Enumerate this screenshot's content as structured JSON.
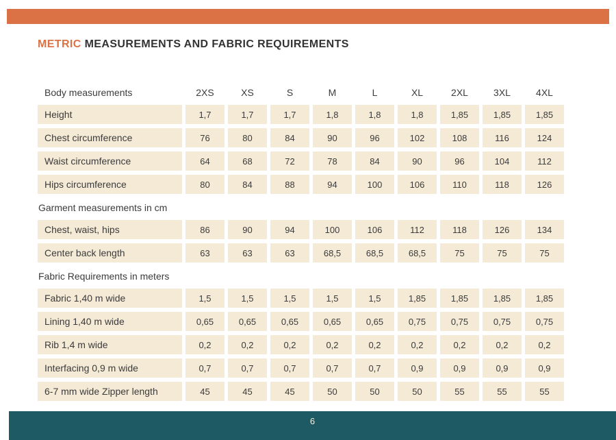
{
  "page": {
    "title_accent": "METRIC",
    "title_rest": " MEASUREMENTS AND FABRIC REQUIREMENTS",
    "page_number": "6",
    "colors": {
      "accent_orange": "#DB7245",
      "row_beige": "#F5EAD6",
      "footer_teal": "#1D5A64",
      "text_dark": "#3B3B3B"
    }
  },
  "table": {
    "header_label": "Body measurements",
    "sizes": [
      "2XS",
      "XS",
      "S",
      "M",
      "L",
      "XL",
      "2XL",
      "3XL",
      "4XL"
    ],
    "sections": [
      {
        "heading": null,
        "rows": [
          {
            "label": "Height",
            "values": [
              "1,7",
              "1,7",
              "1,7",
              "1,8",
              "1,8",
              "1,8",
              "1,85",
              "1,85",
              "1,85"
            ]
          },
          {
            "label": "Chest circumference",
            "values": [
              "76",
              "80",
              "84",
              "90",
              "96",
              "102",
              "108",
              "116",
              "124"
            ]
          },
          {
            "label": "Waist circumference",
            "values": [
              "64",
              "68",
              "72",
              "78",
              "84",
              "90",
              "96",
              "104",
              "112"
            ]
          },
          {
            "label": "Hips circumference",
            "values": [
              "80",
              "84",
              "88",
              "94",
              "100",
              "106",
              "110",
              "118",
              "126"
            ]
          }
        ]
      },
      {
        "heading": "Garment measurements in cm",
        "rows": [
          {
            "label": "Chest, waist, hips",
            "values": [
              "86",
              "90",
              "94",
              "100",
              "106",
              "112",
              "118",
              "126",
              "134"
            ]
          },
          {
            "label": "Center back length",
            "values": [
              "63",
              "63",
              "63",
              "68,5",
              "68,5",
              "68,5",
              "75",
              "75",
              "75"
            ]
          }
        ]
      },
      {
        "heading": "Fabric Requirements in meters",
        "rows": [
          {
            "label": "Fabric 1,40 m wide",
            "values": [
              "1,5",
              "1,5",
              "1,5",
              "1,5",
              "1,5",
              "1,85",
              "1,85",
              "1,85",
              "1,85"
            ]
          },
          {
            "label": "Lining 1,40 m wide",
            "values": [
              "0,65",
              "0,65",
              "0,65",
              "0,65",
              "0,65",
              "0,75",
              "0,75",
              "0,75",
              "0,75"
            ]
          },
          {
            "label": "Rib 1,4 m wide",
            "values": [
              "0,2",
              "0,2",
              "0,2",
              "0,2",
              "0,2",
              "0,2",
              "0,2",
              "0,2",
              "0,2"
            ]
          },
          {
            "label": "Interfacing 0,9 m wide",
            "values": [
              "0,7",
              "0,7",
              "0,7",
              "0,7",
              "0,7",
              "0,9",
              "0,9",
              "0,9",
              "0,9"
            ]
          },
          {
            "label": "6-7 mm wide Zipper length",
            "values": [
              "45",
              "45",
              "45",
              "50",
              "50",
              "50",
              "55",
              "55",
              "55"
            ]
          }
        ]
      }
    ]
  }
}
